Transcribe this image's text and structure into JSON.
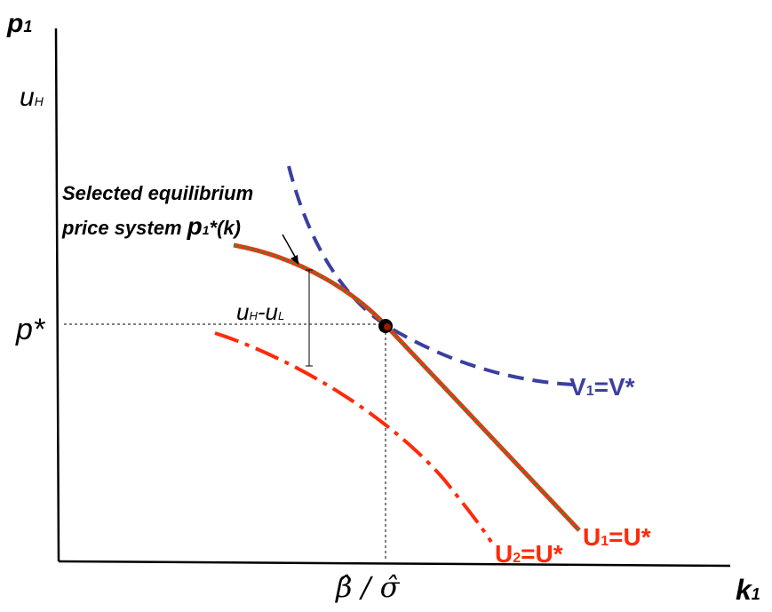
{
  "axes": {
    "y_label": "p",
    "y_label_sub": "1",
    "x_label": "k",
    "x_label_sub": "1"
  },
  "y_ticks": {
    "uh_main": "u",
    "uh_sub": "H",
    "pstar": "p*"
  },
  "x_ticks": {
    "beta_sigma": "β̂ / σ̂"
  },
  "annotation": {
    "line1": "Selected equilibrium",
    "line2_prefix": "price system ",
    "line2_p": "p",
    "line2_sub": "1",
    "line2_suffix": "*(k)"
  },
  "gap_label": {
    "u1": "u",
    "h": "H",
    "dash": "-",
    "u2": "u",
    "l": "L"
  },
  "curves": {
    "v1_main": "V",
    "v1_sub": "1",
    "v1_rest": "=V*",
    "u1_main": "U",
    "u1_sub": "1",
    "u1_rest": "=U*",
    "u2_main": "U",
    "u2_sub": "2",
    "u2_rest": "=U*"
  },
  "colors": {
    "v_curve": "#3b3fa0",
    "u_red": "#ff2a0a",
    "u_green": "#3a8f3a",
    "axis": "#000000"
  }
}
